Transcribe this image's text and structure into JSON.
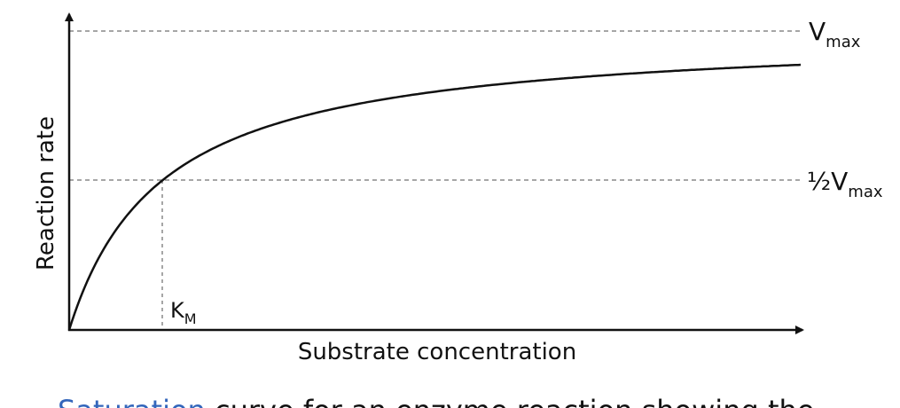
{
  "axes": {
    "y_label": "Reaction rate",
    "x_label": "Substrate concentration"
  },
  "labels": {
    "vmax": {
      "main": "V",
      "sub": "max"
    },
    "half_vmax": {
      "main": "½V",
      "sub": "max"
    },
    "km": {
      "main": "K",
      "sub": "M"
    }
  },
  "caption": {
    "link": "Saturation",
    "rest": " curve for an enzyme reaction showing the"
  }
}
